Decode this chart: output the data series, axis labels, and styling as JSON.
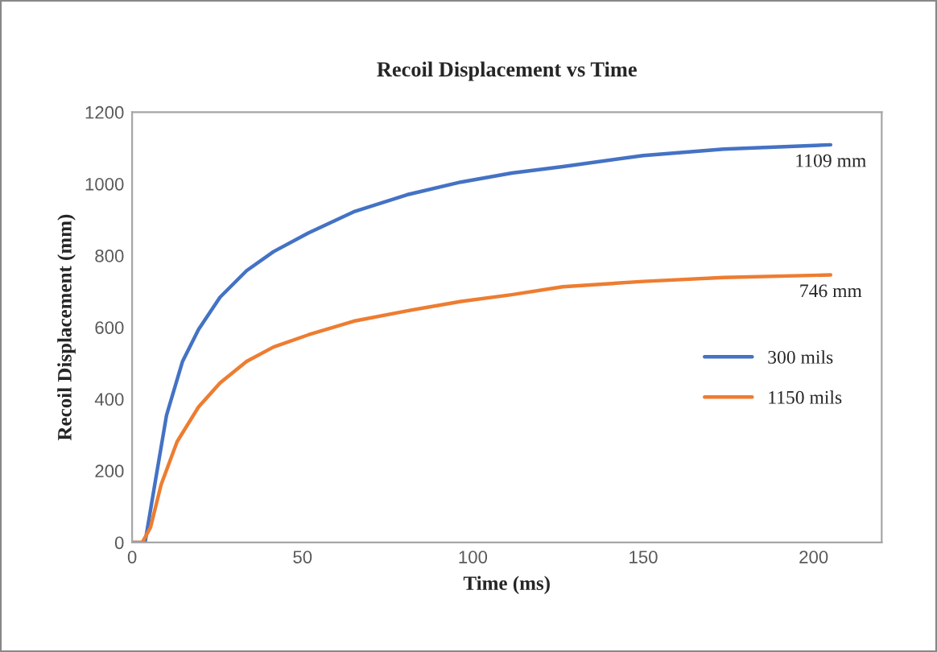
{
  "chart_data": {
    "type": "line",
    "title": "Recoil Displacement vs Time",
    "xlabel": "Time (ms)",
    "ylabel": "Recoil Displacement (mm)",
    "xlim": [
      0,
      220
    ],
    "xticks": [
      0,
      50,
      100,
      150,
      200
    ],
    "ylim": [
      0,
      1200
    ],
    "yticks": [
      0,
      200,
      400,
      600,
      800,
      1000,
      1200
    ],
    "grid": false,
    "legend": "right",
    "series": [
      {
        "name": "300 mils",
        "color": "#4472c4",
        "x": [
          0,
          3.8,
          6.9,
          10.1,
          14.8,
          19.5,
          25.8,
          33.6,
          41.5,
          51.7,
          65,
          80.8,
          96.5,
          111.4,
          126.4,
          150,
          173.6,
          205
        ],
        "values": [
          0,
          0,
          176,
          355,
          505,
          594,
          684,
          758,
          811,
          863,
          922,
          970,
          1005,
          1030,
          1048,
          1079,
          1097,
          1109
        ]
      },
      {
        "name": "1150 mils",
        "color": "#ed7d31",
        "x": [
          0,
          3.0,
          5.4,
          8.5,
          13.2,
          19.5,
          25.8,
          33.6,
          41.5,
          51.7,
          65,
          80.8,
          96.5,
          111.4,
          126.4,
          150,
          173.6,
          205
        ],
        "values": [
          0,
          0,
          42,
          161,
          281,
          378,
          445,
          505,
          545,
          579,
          617,
          646,
          672,
          691,
          713,
          728,
          739,
          746
        ]
      }
    ],
    "annotations": [
      {
        "text": "1109 mm",
        "x": 205,
        "y": 1109
      },
      {
        "text": "746 mm",
        "x": 205,
        "y": 746
      }
    ]
  }
}
